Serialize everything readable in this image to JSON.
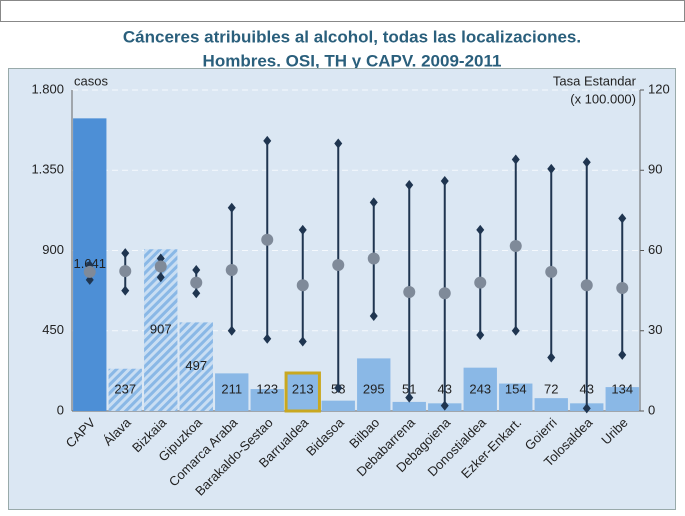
{
  "chart_data": {
    "type": "bar",
    "title": [
      "Cánceres atribuibles al alcohol, todas las localizaciones.",
      "Hombres. OSI, TH y CAPV. 2009-2011"
    ],
    "y_label": "casos",
    "y2_label": [
      "Tasa Estandar",
      "(x 100.000)"
    ],
    "categories": [
      "CAPV",
      "Álava",
      "Bizkaia",
      "Gipuzkoa",
      "Comarca Araba",
      "Barakaldo-Sestao",
      "Barrualdea",
      "Bidasoa",
      "Bilbao",
      "Debabarrena",
      "Debagoiena",
      "Donostialdea",
      "Ezker-Enkart.",
      "Goierri",
      "Tolosaldea",
      "Uribe"
    ],
    "series": [
      {
        "values": [
          1641,
          237,
          907,
          497,
          211,
          123,
          213,
          58,
          295,
          51,
          43,
          243,
          154,
          72,
          43,
          134
        ],
        "value_labels": [
          "1.641",
          "237",
          "907",
          "497",
          "211",
          "123",
          "213",
          "58",
          "295",
          "51",
          "43",
          "243",
          "154",
          "72",
          "43",
          "134"
        ],
        "colors": [
          "#4d8fd6",
          "#9cc3ea",
          "#9cc3ea",
          "#9cc3ea",
          "#8ab8e6",
          "#8ab8e6",
          "#8ab8e6",
          "#8ab8e6",
          "#8ab8e6",
          "#8ab8e6",
          "#8ab8e6",
          "#8ab8e6",
          "#8ab8e6",
          "#8ab8e6",
          "#8ab8e6",
          "#8ab8e6"
        ],
        "hatched": [
          1,
          2,
          3
        ],
        "highlight": 6,
        "highlight_color": "#c9a820"
      },
      {
        "axis": "y2",
        "color": "#1f3550",
        "point_color": "#7f8a99",
        "values": [
          52,
          52.3,
          54,
          48,
          52.7,
          64,
          47,
          54.6,
          57,
          44.5,
          44,
          48,
          61.7,
          52,
          47,
          46
        ],
        "low": [
          49,
          45,
          50,
          44,
          30,
          27,
          26,
          8.6,
          35.5,
          5,
          2,
          28.4,
          30,
          20,
          1,
          21
        ],
        "high": [
          54.5,
          59,
          57,
          52.7,
          76,
          101,
          67.7,
          100,
          78,
          84.5,
          86,
          67.7,
          94,
          90.5,
          93,
          72
        ]
      }
    ],
    "ylim": [
      0,
      1800
    ],
    "yticks": [
      0,
      450,
      900,
      {
        "value": 1350,
        "label": "1.350"
      },
      {
        "value": 1800,
        "label": "1.800"
      }
    ],
    "y2lim": [
      0,
      120
    ],
    "y2ticks": [
      0,
      30,
      60,
      90,
      120
    ],
    "grid": true
  }
}
